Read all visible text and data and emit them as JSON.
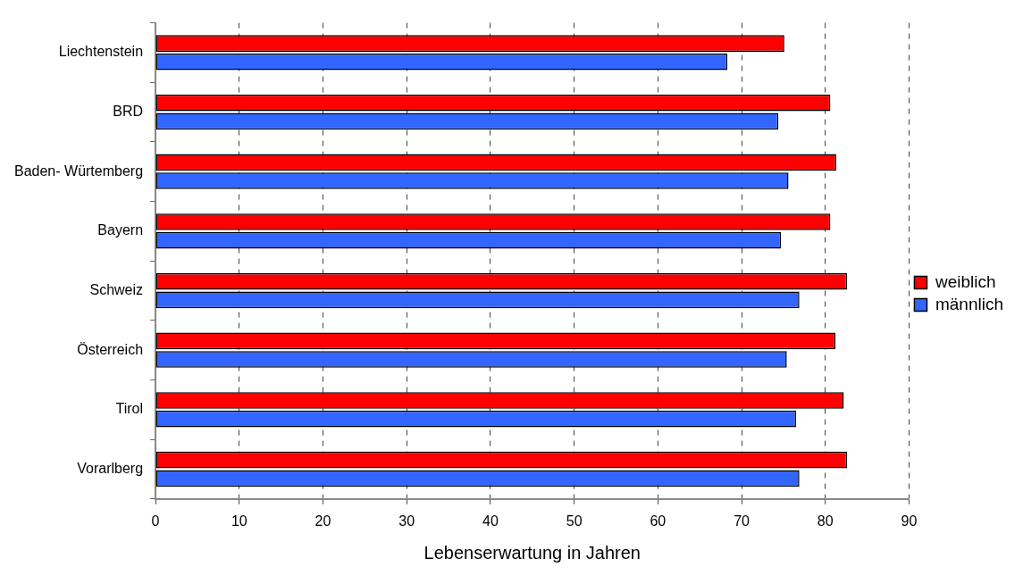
{
  "chart_data": {
    "type": "bar",
    "orientation": "horizontal",
    "xlabel": "Lebenserwartung in Jahren",
    "categories": [
      "Liechtenstein",
      "BRD",
      "Baden- Würtemberg",
      "Bayern",
      "Schweiz",
      "Österreich",
      "Tirol",
      "Vorarlberg"
    ],
    "series": [
      {
        "name": "weiblich",
        "color": "#ff0000",
        "values": [
          75.1,
          80.6,
          81.3,
          80.6,
          82.6,
          81.2,
          82.2,
          82.6
        ]
      },
      {
        "name": "männlich",
        "color": "#3366ff",
        "values": [
          68.3,
          74.4,
          75.6,
          74.7,
          76.9,
          75.4,
          76.5,
          76.9
        ]
      }
    ],
    "xlim": [
      0,
      90
    ],
    "xticks": [
      0,
      10,
      20,
      30,
      40,
      50,
      60,
      70,
      80,
      90
    ],
    "grid": "x",
    "legend": "right"
  }
}
